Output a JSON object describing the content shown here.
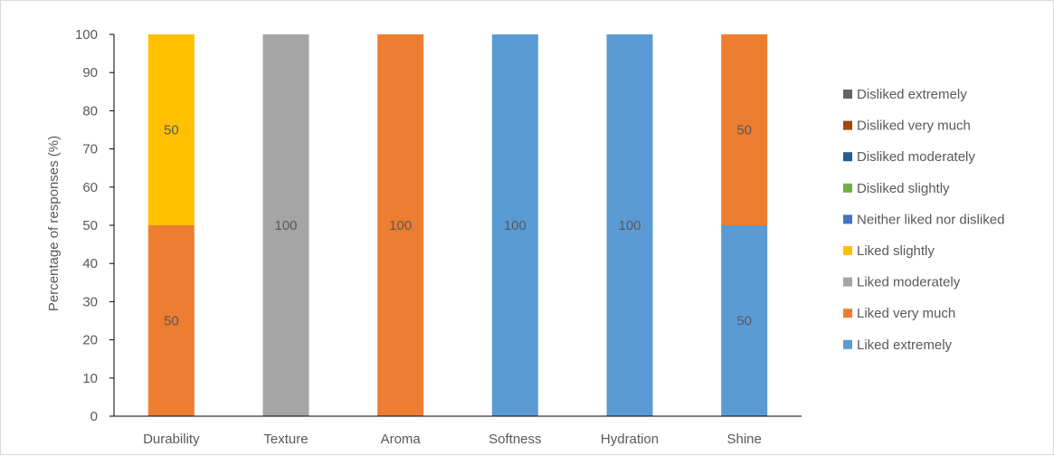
{
  "chart_data": {
    "type": "bar",
    "stacked": true,
    "categories": [
      "Durability",
      "Texture",
      "Aroma",
      "Softness",
      "Hydration",
      "Shine"
    ],
    "xlabel": "",
    "ylabel": "Percentage of responses (%)",
    "ylim": [
      0,
      100
    ],
    "yticks": [
      0,
      10,
      20,
      30,
      40,
      50,
      60,
      70,
      80,
      90,
      100
    ],
    "grid": false,
    "legend_position": "right",
    "series": [
      {
        "name": "Liked extremely",
        "color": "#5B9BD5",
        "values": [
          0,
          0,
          0,
          100,
          100,
          50
        ]
      },
      {
        "name": "Liked very much",
        "color": "#ED7D31",
        "values": [
          50,
          0,
          100,
          0,
          0,
          50
        ]
      },
      {
        "name": "Liked moderately",
        "color": "#A5A5A5",
        "values": [
          0,
          100,
          0,
          0,
          0,
          0
        ]
      },
      {
        "name": "Liked slightly",
        "color": "#FFC000",
        "values": [
          50,
          0,
          0,
          0,
          0,
          0
        ]
      },
      {
        "name": "Neither liked nor disliked",
        "color": "#4472C4",
        "values": [
          0,
          0,
          0,
          0,
          0,
          0
        ]
      },
      {
        "name": "Disliked slightly",
        "color": "#70AD47",
        "values": [
          0,
          0,
          0,
          0,
          0,
          0
        ]
      },
      {
        "name": "Disliked moderately",
        "color": "#255E91",
        "values": [
          0,
          0,
          0,
          0,
          0,
          0
        ]
      },
      {
        "name": "Disliked very much",
        "color": "#9E480E",
        "values": [
          0,
          0,
          0,
          0,
          0,
          0
        ]
      },
      {
        "name": "Disliked extremely",
        "color": "#636363",
        "values": [
          0,
          0,
          0,
          0,
          0,
          0
        ]
      }
    ]
  }
}
